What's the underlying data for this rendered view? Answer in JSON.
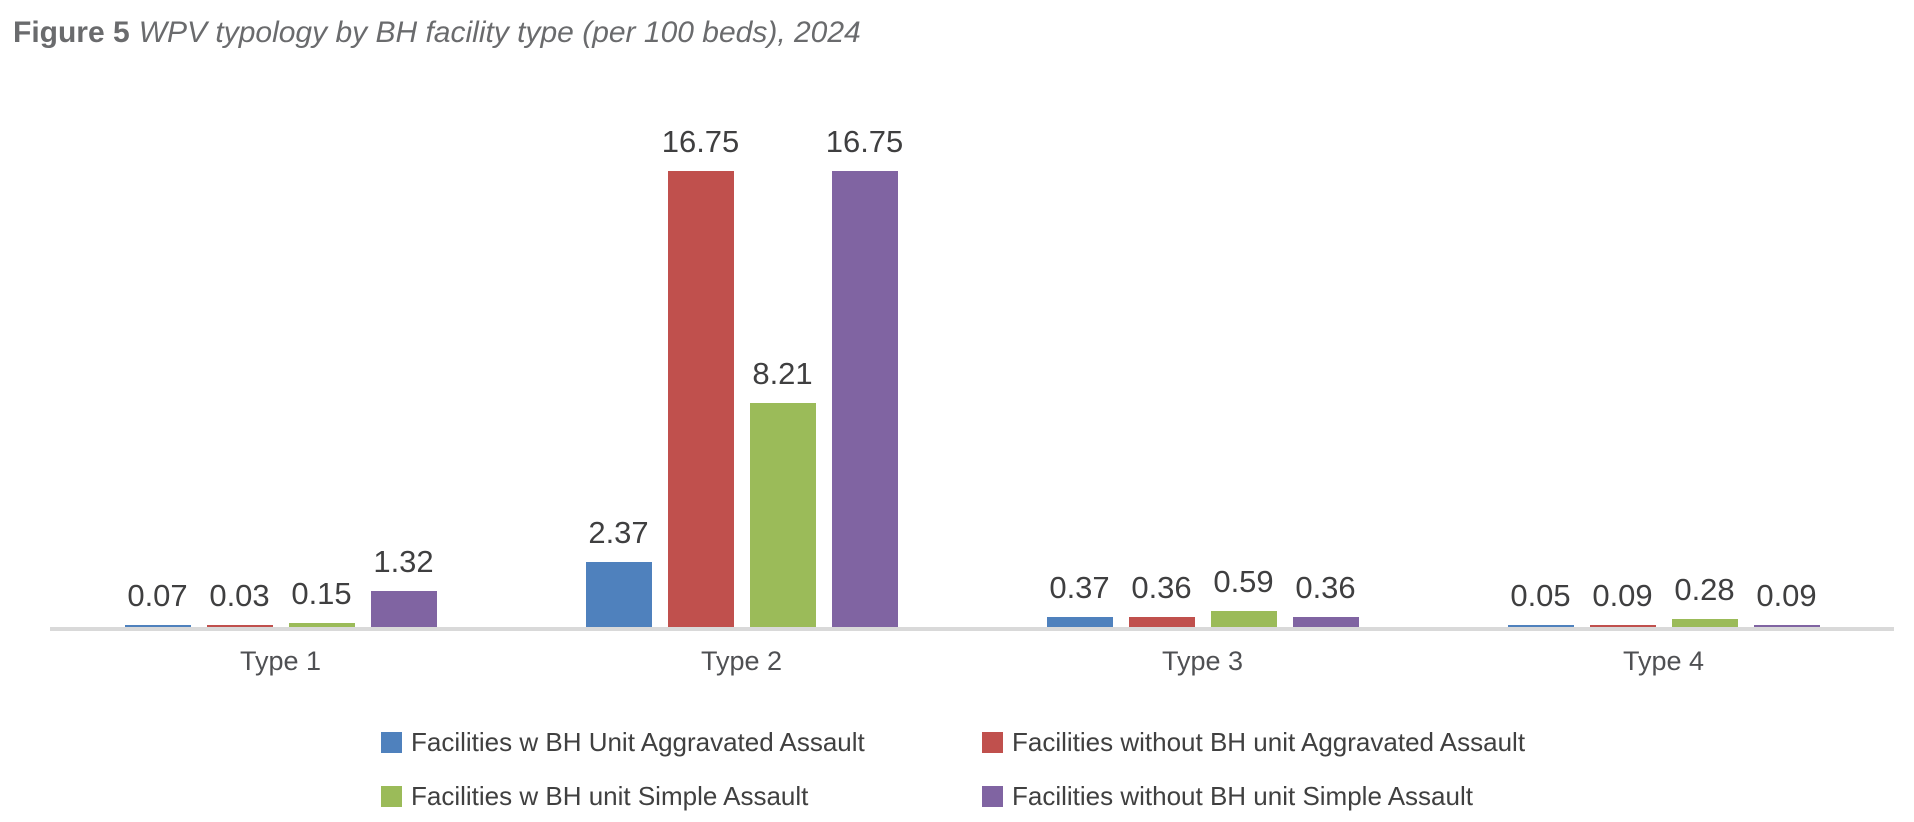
{
  "title": {
    "prefix": "Figure 5",
    "text": "WPV typology by BH facility type (per 100 beds), 2024"
  },
  "chart_data": {
    "type": "bar",
    "title": "Figure 5 WPV typology by BH facility type (per 100 beds), 2024",
    "categories": [
      "Type 1",
      "Type 2",
      "Type 3",
      "Type 4"
    ],
    "series": [
      {
        "name": "Facilities w BH Unit Aggravated Assault",
        "color": "#4F81BD",
        "values": [
          0.07,
          2.37,
          0.37,
          0.05
        ]
      },
      {
        "name": "Facilities without BH unit Aggravated Assault",
        "color": "#C0504D",
        "values": [
          0.03,
          16.75,
          0.36,
          0.09
        ]
      },
      {
        "name": "Facilities w BH unit Simple Assault",
        "color": "#9BBB59",
        "values": [
          0.15,
          8.21,
          0.59,
          0.28
        ]
      },
      {
        "name": "Facilities without BH unit Simple Assault",
        "color": "#8064A2",
        "values": [
          1.32,
          16.75,
          0.36,
          0.09
        ]
      }
    ],
    "value_label_decimals": 2,
    "ylim": [
      0,
      17
    ],
    "grid": false,
    "y_axis_visible": false,
    "legend_position": "bottom",
    "axis_line_color": "#D9D9D9",
    "value_label_color": "#3F3F40",
    "category_label_color": "#4F5053",
    "legend_text_color": "#404040"
  }
}
